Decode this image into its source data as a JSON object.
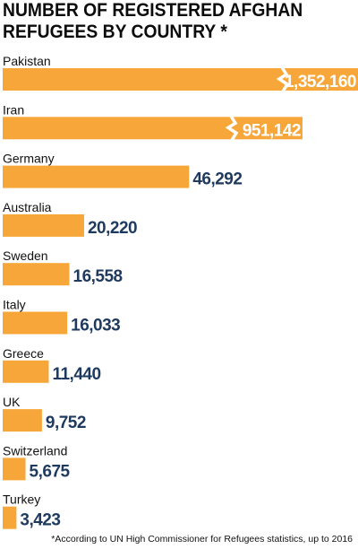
{
  "title_line1": "NUMBER OF REGISTERED AFGHAN",
  "title_line2": "REFUGEES BY COUNTRY *",
  "footnote": "*According to UN High Commissioner for Refugees statistics, up to 2016",
  "colors": {
    "bar": "#f7a73a",
    "value_text": "#1f3a5f",
    "value_text_inside": "#ffffff"
  },
  "chart_data": {
    "type": "bar",
    "orientation": "horizontal",
    "axis_break": true,
    "categories": [
      "Pakistan",
      "Iran",
      "Germany",
      "Australia",
      "Sweden",
      "Italy",
      "Greece",
      "UK",
      "Switzerland",
      "Turkey"
    ],
    "values": [
      1352160,
      951142,
      46292,
      20220,
      16558,
      16033,
      11440,
      9752,
      5675,
      3423
    ],
    "labels": [
      "1,352,160",
      "951,142",
      "46,292",
      "20,220",
      "16,558",
      "16,033",
      "11,440",
      "9,752",
      "5,675",
      "3,423"
    ],
    "broken_bars": [
      "Pakistan",
      "Iran"
    ]
  }
}
